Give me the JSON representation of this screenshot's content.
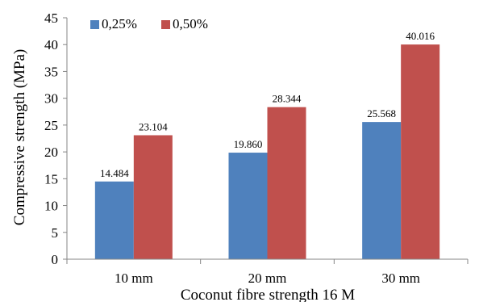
{
  "chart_data": {
    "type": "bar",
    "categories": [
      "10 mm",
      "20 mm",
      "30 mm"
    ],
    "series": [
      {
        "name": "0,25%",
        "values": [
          14.484,
          19.86,
          25.568
        ],
        "labels": [
          "14.484",
          "19.860",
          "25.568"
        ],
        "color": "#4f81bd"
      },
      {
        "name": "0,50%",
        "values": [
          23.104,
          28.344,
          40.016
        ],
        "labels": [
          "23.104",
          "28.344",
          "40.016"
        ],
        "color": "#c0504d"
      }
    ],
    "xlabel": "Coconut fibre strength 16 M",
    "ylabel": "Compressive strength (MPa)",
    "ylim": [
      0,
      45
    ],
    "yticks": [
      "0",
      "5",
      "10",
      "15",
      "20",
      "25",
      "30",
      "35",
      "40",
      "45"
    ],
    "grid": false,
    "legend": "top-left"
  }
}
